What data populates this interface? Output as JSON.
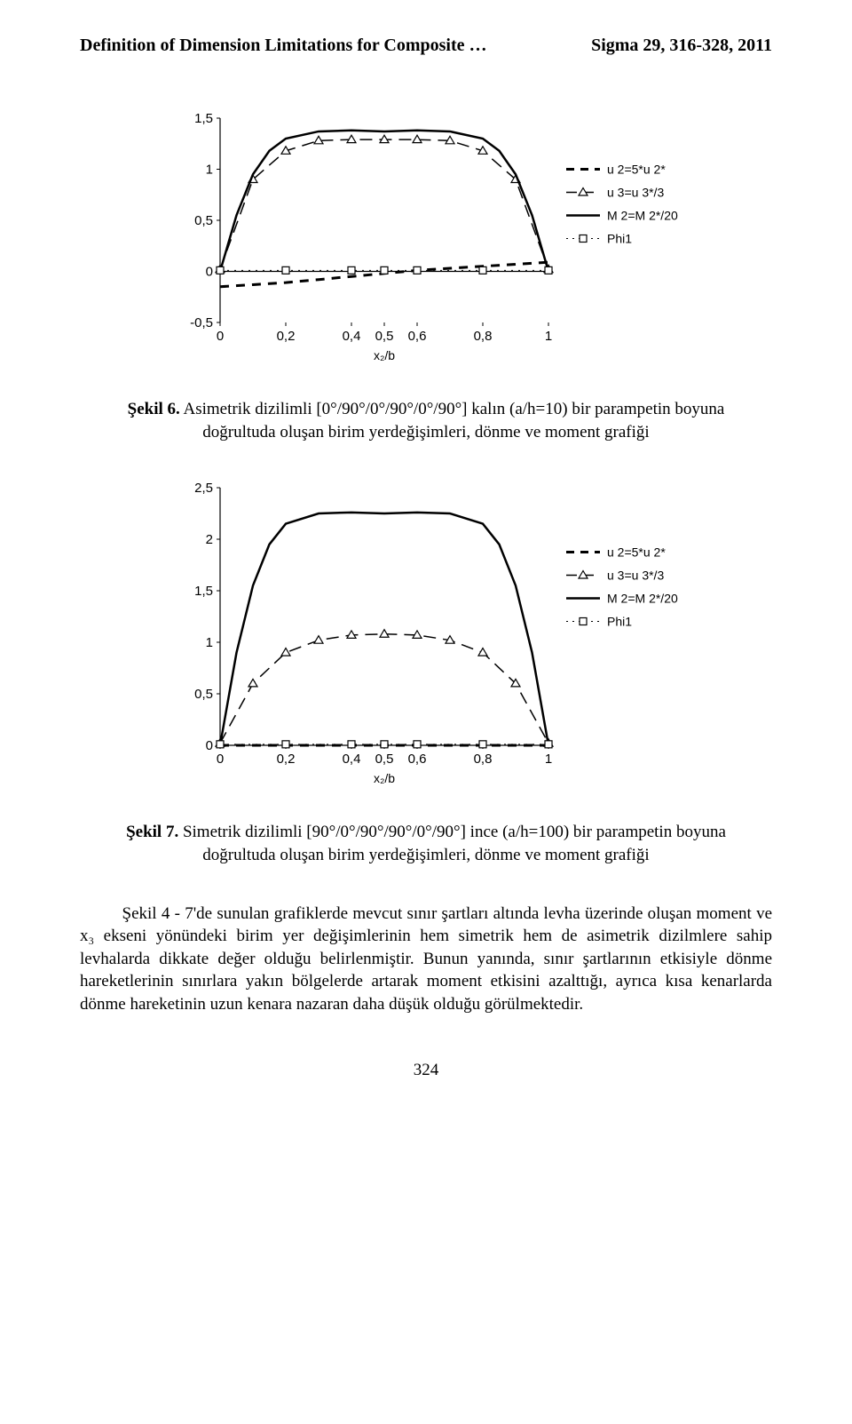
{
  "header": {
    "left": "Definition of Dimension Limitations for Composite …",
    "right": "Sigma 29, 316-328, 2011"
  },
  "chart1": {
    "type": "line",
    "x_axis": {
      "ticks": [
        0,
        0.2,
        0.4,
        0.5,
        0.6,
        0.8,
        1
      ],
      "tick_labels": [
        "0",
        "0,2",
        "0,4",
        "0,5",
        "0,6",
        "0,8",
        "1"
      ],
      "label": "x₂/b",
      "label_fontsize": 14
    },
    "y_axis": {
      "ticks": [
        -0.5,
        0,
        0.5,
        1,
        1.5
      ],
      "tick_labels": [
        "-0,5",
        "0",
        "0,5",
        "1",
        "1,5"
      ]
    },
    "xlim": [
      0,
      1
    ],
    "ylim": [
      -0.5,
      1.5
    ],
    "plot_area_w": 370,
    "plot_area_h": 230,
    "legend_gap": 20,
    "series": [
      {
        "id": "u2",
        "legend": "u 2=5*u 2*",
        "style": "thick-dash",
        "color": "#000000",
        "width": 3,
        "points": [
          [
            0,
            -0.15
          ],
          [
            0.1,
            -0.13
          ],
          [
            0.2,
            -0.11
          ],
          [
            0.3,
            -0.08
          ],
          [
            0.4,
            -0.05
          ],
          [
            0.5,
            -0.02
          ],
          [
            0.6,
            0.01
          ],
          [
            0.7,
            0.03
          ],
          [
            0.8,
            0.05
          ],
          [
            0.9,
            0.07
          ],
          [
            1.0,
            0.09
          ]
        ]
      },
      {
        "id": "u3",
        "legend": "u 3=u 3*/3",
        "style": "dash-tri",
        "color": "#000000",
        "width": 1.5,
        "points": [
          [
            0,
            0.02
          ],
          [
            0.1,
            0.9
          ],
          [
            0.2,
            1.18
          ],
          [
            0.3,
            1.28
          ],
          [
            0.4,
            1.29
          ],
          [
            0.5,
            1.29
          ],
          [
            0.6,
            1.29
          ],
          [
            0.7,
            1.28
          ],
          [
            0.8,
            1.18
          ],
          [
            0.9,
            0.9
          ],
          [
            1.0,
            0.02
          ]
        ],
        "markers_at": [
          0,
          0.1,
          0.2,
          0.3,
          0.4,
          0.5,
          0.6,
          0.7,
          0.8,
          0.9,
          1.0
        ]
      },
      {
        "id": "m2",
        "legend": "M 2=M 2*/20",
        "style": "solid",
        "color": "#000000",
        "width": 2.5,
        "points": [
          [
            0,
            0.0
          ],
          [
            0.05,
            0.55
          ],
          [
            0.1,
            0.95
          ],
          [
            0.15,
            1.18
          ],
          [
            0.2,
            1.3
          ],
          [
            0.3,
            1.37
          ],
          [
            0.4,
            1.38
          ],
          [
            0.5,
            1.37
          ],
          [
            0.6,
            1.38
          ],
          [
            0.7,
            1.37
          ],
          [
            0.8,
            1.3
          ],
          [
            0.85,
            1.18
          ],
          [
            0.9,
            0.95
          ],
          [
            0.95,
            0.55
          ],
          [
            1.0,
            0.0
          ]
        ]
      },
      {
        "id": "phi1",
        "legend": "Phi1",
        "style": "dot-sq",
        "color": "#000000",
        "width": 1,
        "points": [
          [
            0,
            0.01
          ],
          [
            0.2,
            0.01
          ],
          [
            0.4,
            0.01
          ],
          [
            0.5,
            0.01
          ],
          [
            0.6,
            0.01
          ],
          [
            0.8,
            0.01
          ],
          [
            1.0,
            0.01
          ]
        ],
        "markers_at": [
          0,
          0.2,
          0.4,
          0.5,
          0.6,
          0.8,
          1.0
        ]
      }
    ]
  },
  "caption1": {
    "bold": "Şekil 6.",
    "text": " Asimetrik dizilimli [0°/90°/0°/90°/0°/90°] kalın (a/h=10) bir parampetin boyuna doğrultuda oluşan birim yerdeğişimleri, dönme ve moment grafiği"
  },
  "chart2": {
    "type": "line",
    "x_axis": {
      "ticks": [
        0,
        0.2,
        0.4,
        0.5,
        0.6,
        0.8,
        1
      ],
      "tick_labels": [
        "0",
        "0,2",
        "0,4",
        "0,5",
        "0,6",
        "0,8",
        "1"
      ],
      "label": "x₂/b",
      "label_fontsize": 14
    },
    "y_axis": {
      "ticks": [
        0,
        0.5,
        1,
        1.5,
        2,
        2.5
      ],
      "tick_labels": [
        "0",
        "0,5",
        "1",
        "1,5",
        "2",
        "2,5"
      ]
    },
    "xlim": [
      0,
      1
    ],
    "ylim": [
      0,
      2.5
    ],
    "plot_area_w": 370,
    "plot_area_h": 290,
    "legend_gap": 20,
    "series": [
      {
        "id": "u2",
        "legend": "u 2=5*u 2*",
        "style": "thick-dash",
        "color": "#000000",
        "width": 3,
        "points": [
          [
            0,
            0.0
          ],
          [
            0.1,
            0.0
          ],
          [
            0.2,
            0.0
          ],
          [
            0.5,
            0.0
          ],
          [
            0.8,
            0.0
          ],
          [
            1.0,
            0.0
          ]
        ]
      },
      {
        "id": "u3",
        "legend": "u 3=u 3*/3",
        "style": "dash-tri",
        "color": "#000000",
        "width": 1.5,
        "points": [
          [
            0,
            0.02
          ],
          [
            0.1,
            0.6
          ],
          [
            0.2,
            0.9
          ],
          [
            0.3,
            1.02
          ],
          [
            0.4,
            1.07
          ],
          [
            0.5,
            1.08
          ],
          [
            0.6,
            1.07
          ],
          [
            0.7,
            1.02
          ],
          [
            0.8,
            0.9
          ],
          [
            0.9,
            0.6
          ],
          [
            1.0,
            0.02
          ]
        ],
        "markers_at": [
          0,
          0.1,
          0.2,
          0.3,
          0.4,
          0.5,
          0.6,
          0.7,
          0.8,
          0.9,
          1.0
        ]
      },
      {
        "id": "m2",
        "legend": "M 2=M 2*/20",
        "style": "solid",
        "color": "#000000",
        "width": 2.5,
        "points": [
          [
            0,
            0.0
          ],
          [
            0.05,
            0.9
          ],
          [
            0.1,
            1.55
          ],
          [
            0.15,
            1.95
          ],
          [
            0.2,
            2.15
          ],
          [
            0.3,
            2.25
          ],
          [
            0.4,
            2.26
          ],
          [
            0.5,
            2.25
          ],
          [
            0.6,
            2.26
          ],
          [
            0.7,
            2.25
          ],
          [
            0.8,
            2.15
          ],
          [
            0.85,
            1.95
          ],
          [
            0.9,
            1.55
          ],
          [
            0.95,
            0.9
          ],
          [
            1.0,
            0.0
          ]
        ]
      },
      {
        "id": "phi1",
        "legend": "Phi1",
        "style": "dot-sq",
        "color": "#000000",
        "width": 1,
        "points": [
          [
            0,
            0.01
          ],
          [
            0.2,
            0.01
          ],
          [
            0.4,
            0.01
          ],
          [
            0.5,
            0.01
          ],
          [
            0.6,
            0.01
          ],
          [
            0.8,
            0.01
          ],
          [
            1.0,
            0.01
          ]
        ],
        "markers_at": [
          0,
          0.2,
          0.4,
          0.5,
          0.6,
          0.8,
          1.0
        ]
      }
    ]
  },
  "caption2": {
    "bold": "Şekil 7.",
    "text": " Simetrik dizilimli [90°/0°/90°/90°/0°/90°] ince (a/h=100) bir parampetin boyuna doğrultuda oluşan birim yerdeğişimleri, dönme ve moment grafiği"
  },
  "body": {
    "text": "Şekil 4 - 7'de sunulan grafiklerde mevcut sınır şartları altında levha üzerinde oluşan moment ve x₃ ekseni yönündeki birim yer değişimlerinin hem simetrik hem de asimetrik dizilmlere sahip levhalarda dikkate değer olduğu belirlenmiştir. Bunun yanında, sınır şartlarının etkisiyle dönme hareketlerinin sınırlara yakın bölgelerde artarak moment etkisini azalttığı, ayrıca kısa kenarlarda dönme hareketinin uzun kenara nazaran daha düşük olduğu görülmektedir."
  },
  "pagenum": "324"
}
